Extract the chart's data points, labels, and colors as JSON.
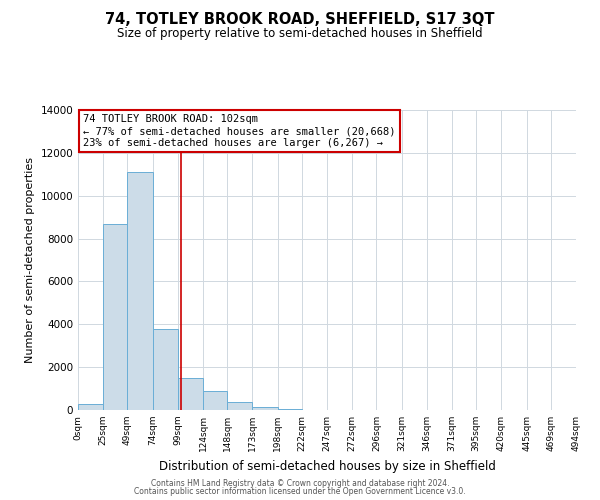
{
  "title": "74, TOTLEY BROOK ROAD, SHEFFIELD, S17 3QT",
  "subtitle": "Size of property relative to semi-detached houses in Sheffield",
  "xlabel": "Distribution of semi-detached houses by size in Sheffield",
  "ylabel": "Number of semi-detached properties",
  "bin_edges": [
    0,
    25,
    49,
    74,
    99,
    124,
    148,
    173,
    198,
    222,
    247,
    272,
    296,
    321,
    346,
    371,
    395,
    420,
    445,
    469,
    494
  ],
  "bar_heights": [
    280,
    8700,
    11100,
    3800,
    1500,
    900,
    380,
    130,
    70,
    0,
    0,
    0,
    0,
    0,
    0,
    0,
    0,
    0,
    0,
    0
  ],
  "bar_color": "#ccdce8",
  "bar_edgecolor": "#6aaed6",
  "property_size": 102,
  "vline_color": "#cc0000",
  "annotation_line1": "74 TOTLEY BROOK ROAD: 102sqm",
  "annotation_line2": "← 77% of semi-detached houses are smaller (20,668)",
  "annotation_line3": "23% of semi-detached houses are larger (6,267) →",
  "annotation_box_edgecolor": "#cc0000",
  "ylim": [
    0,
    14000
  ],
  "yticks": [
    0,
    2000,
    4000,
    6000,
    8000,
    10000,
    12000,
    14000
  ],
  "xtick_labels": [
    "0sqm",
    "25sqm",
    "49sqm",
    "74sqm",
    "99sqm",
    "124sqm",
    "148sqm",
    "173sqm",
    "198sqm",
    "222sqm",
    "247sqm",
    "272sqm",
    "296sqm",
    "321sqm",
    "346sqm",
    "371sqm",
    "395sqm",
    "420sqm",
    "445sqm",
    "469sqm",
    "494sqm"
  ],
  "footer_line1": "Contains HM Land Registry data © Crown copyright and database right 2024.",
  "footer_line2": "Contains public sector information licensed under the Open Government Licence v3.0.",
  "background_color": "#ffffff",
  "grid_color": "#d0d8e0"
}
